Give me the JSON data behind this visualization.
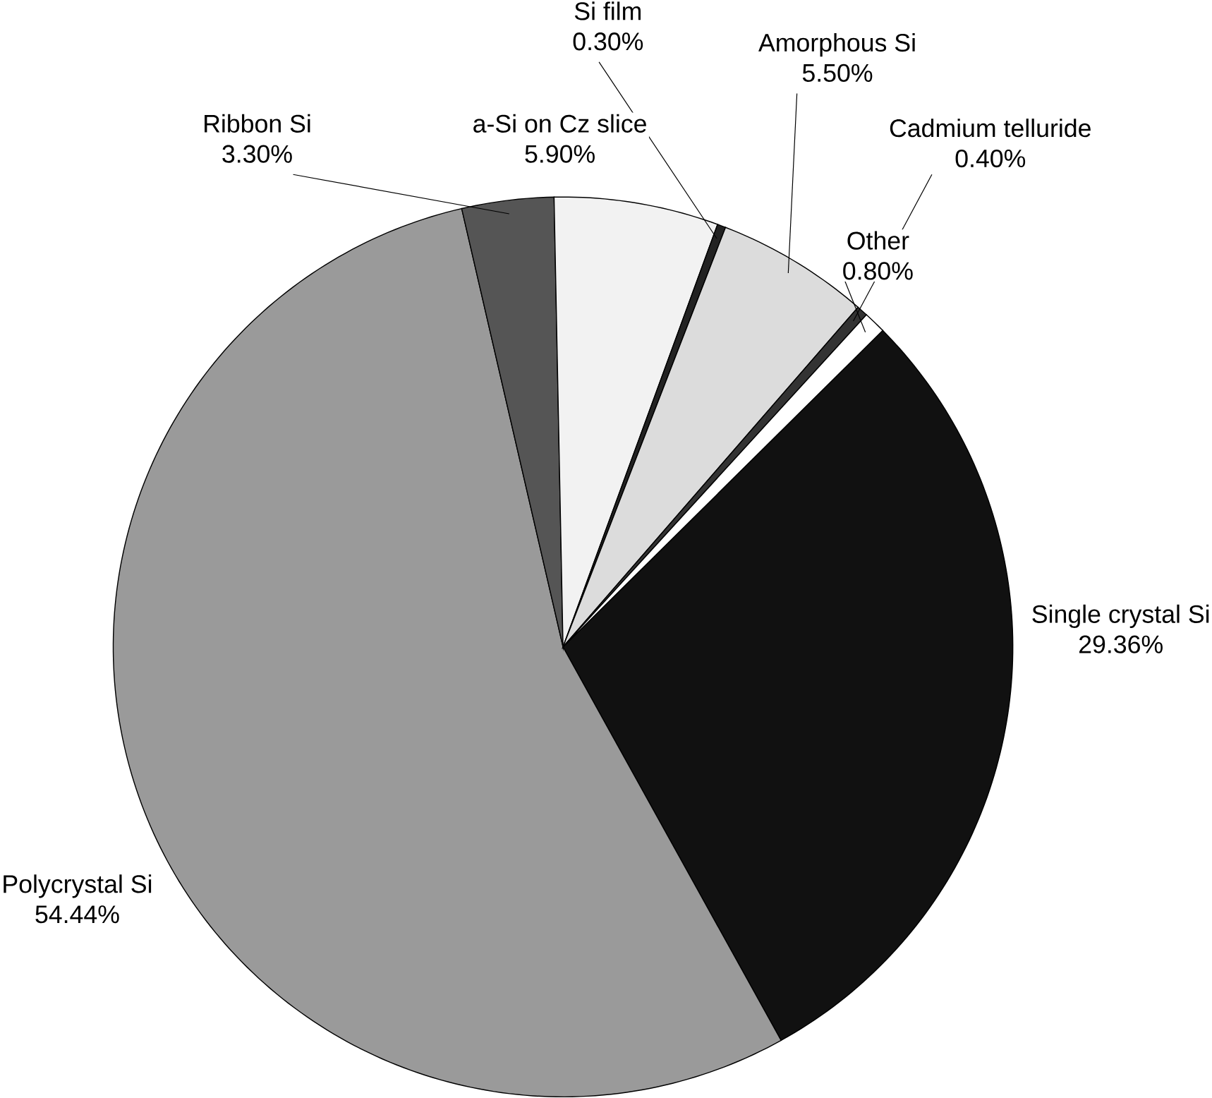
{
  "chart_data": {
    "type": "pie",
    "categories": [
      "Single crystal Si",
      "Polycrystal Si",
      "Ribbon Si",
      "a-Si on Cz slice",
      "Si film",
      "Amorphous Si",
      "Cadmium telluride",
      "Other"
    ],
    "values": [
      29.36,
      54.44,
      3.3,
      5.9,
      0.3,
      5.5,
      0.4,
      0.8
    ],
    "value_labels": [
      "29.36%",
      "54.44%",
      "3.30%",
      "5.90%",
      "0.30%",
      "5.50%",
      "0.40%",
      "0.80%"
    ],
    "colors": [
      "#111111",
      "#9a9a9a",
      "#555555",
      "#f2f2f2",
      "#222222",
      "#dcdcdc",
      "#333333",
      "#ffffff"
    ]
  }
}
